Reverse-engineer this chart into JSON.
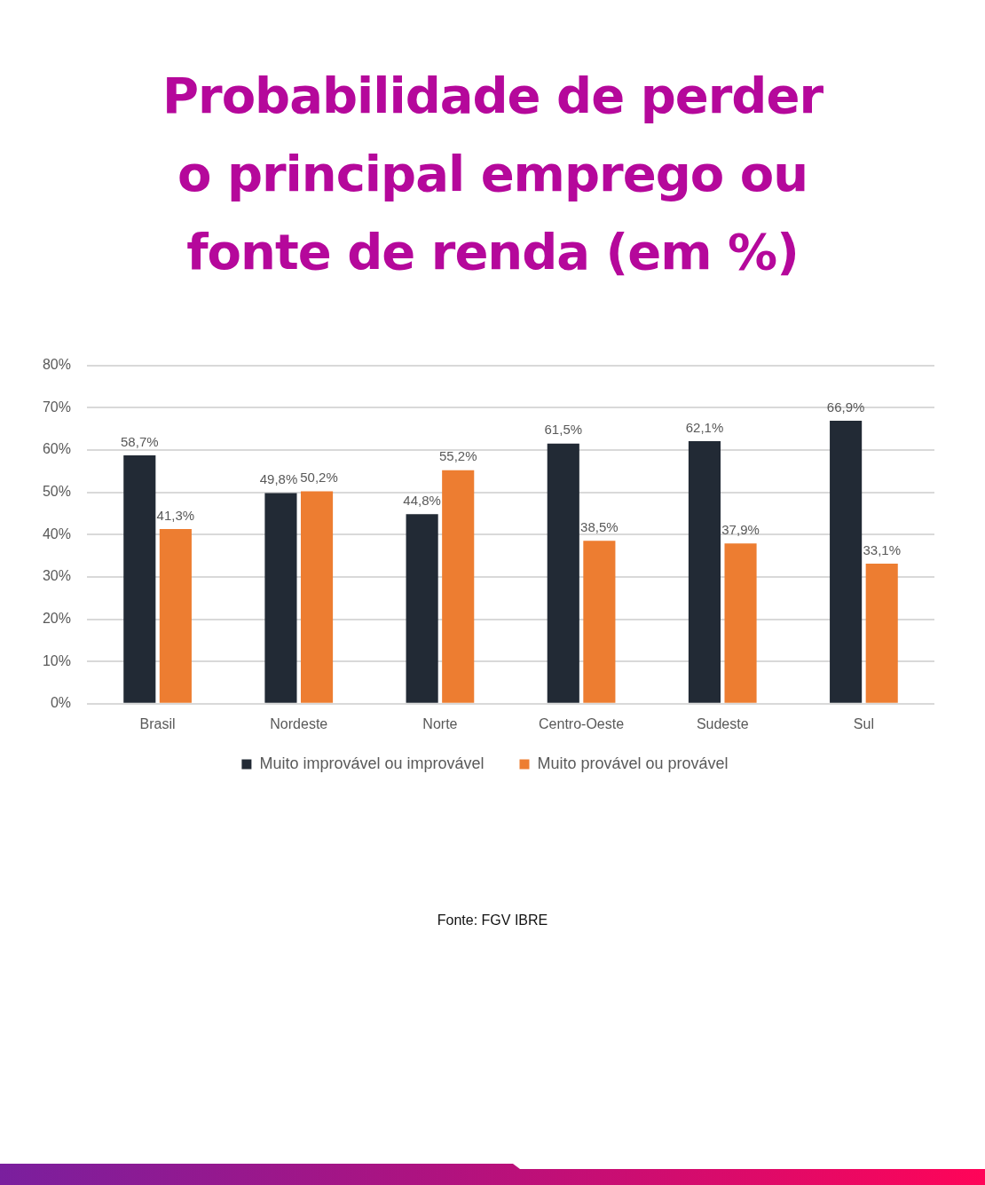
{
  "chart_data": {
    "type": "bar",
    "title": "Probabilidade de perder o principal emprego ou fonte de renda (em %)",
    "categories": [
      "Brasil",
      "Nordeste",
      "Norte",
      "Centro-Oeste",
      "Sudeste",
      "Sul"
    ],
    "series": [
      {
        "name": "Muito improvável ou improvável",
        "color": "#222a35",
        "values": [
          58.7,
          49.8,
          44.8,
          61.5,
          62.1,
          66.9
        ],
        "value_labels": [
          "58,7%",
          "49,8%",
          "44,8%",
          "61,5%",
          "62,1%",
          "66,9%"
        ]
      },
      {
        "name": "Muito provável ou provável",
        "color": "#ed7d31",
        "values": [
          41.3,
          50.2,
          55.2,
          38.5,
          37.9,
          33.1
        ],
        "value_labels": [
          "41,3%",
          "50,2%",
          "55,2%",
          "38,5%",
          "37,9%",
          "33,1%"
        ]
      }
    ],
    "ylim": [
      0,
      80
    ],
    "yticks": [
      {
        "value": 0,
        "label": "0%"
      },
      {
        "value": 10,
        "label": "10%"
      },
      {
        "value": 20,
        "label": "20%"
      },
      {
        "value": 30,
        "label": "30%"
      },
      {
        "value": 40,
        "label": "40%"
      },
      {
        "value": 50,
        "label": "50%"
      },
      {
        "value": 60,
        "label": "60%"
      },
      {
        "value": 70,
        "label": "70%"
      },
      {
        "value": 80,
        "label": "80%"
      }
    ],
    "grid": "y",
    "legend": "bottom",
    "annotations": [
      "Fonte: FGV IBRE"
    ]
  }
}
